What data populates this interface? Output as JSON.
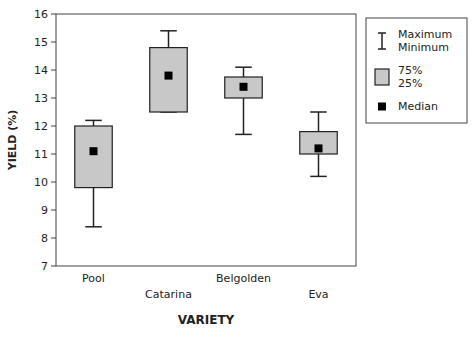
{
  "chart_data": {
    "type": "box",
    "categories": [
      "Pool",
      "Catarina",
      "Belgolden",
      "Eva"
    ],
    "boxes": [
      {
        "q1": 9.8,
        "q3": 12.0,
        "median": 11.1,
        "min": 8.4,
        "max": 12.2
      },
      {
        "q1": 12.5,
        "q3": 14.8,
        "median": 13.8,
        "min": 12.5,
        "max": 15.4
      },
      {
        "q1": 13.0,
        "q3": 13.75,
        "median": 13.4,
        "min": 11.7,
        "max": 14.1
      },
      {
        "q1": 11.0,
        "q3": 11.8,
        "median": 11.2,
        "min": 10.2,
        "max": 12.5
      }
    ],
    "color": "#c8c8c8",
    "x_label": "VARIETY",
    "y_label": "YIELD (%)",
    "ylim": [
      7,
      16
    ],
    "yticks": [
      7,
      8,
      9,
      10,
      11,
      12,
      13,
      14,
      15,
      16
    ],
    "grid": false,
    "legend": "right",
    "legend_labels": [
      "Maximum\nMinimum",
      "75%\n25%",
      "Median"
    ]
  }
}
